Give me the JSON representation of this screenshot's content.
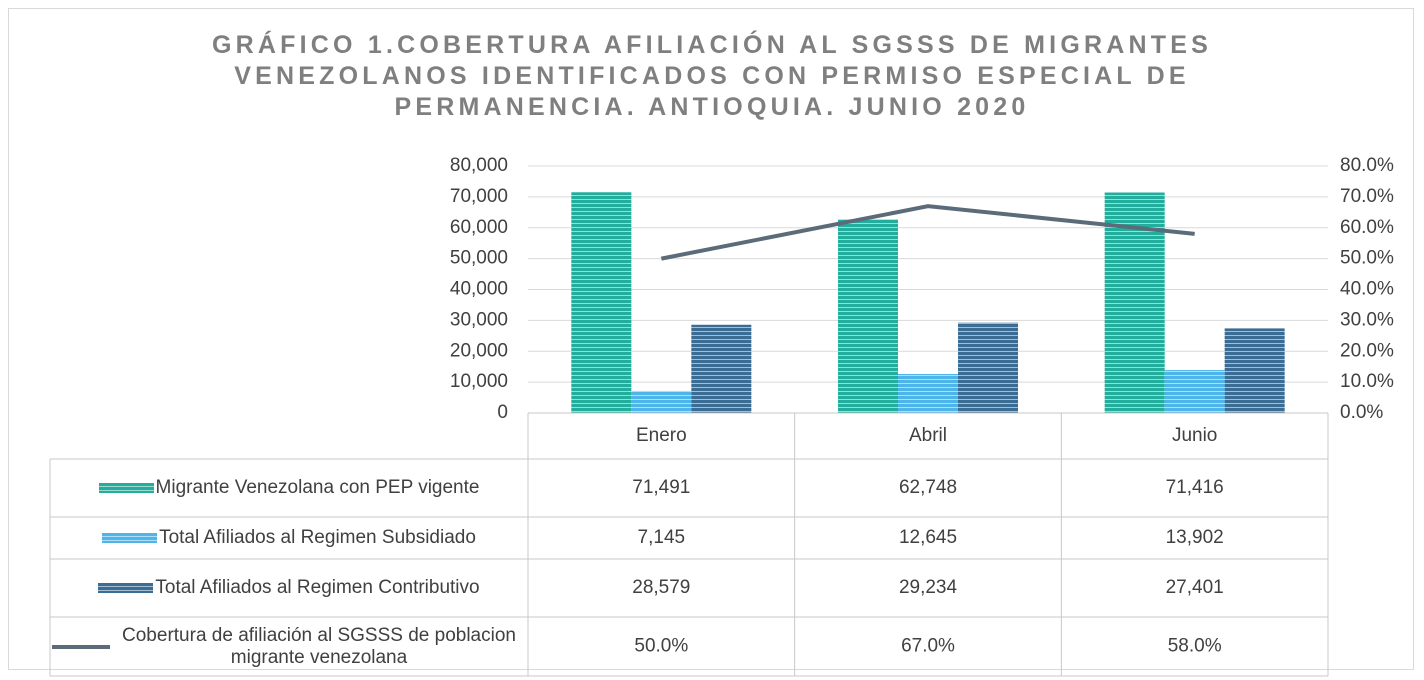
{
  "chart_data": {
    "type": "bar",
    "title": "GRÁFICO 1.COBERTURA AFILIACIÓN AL SGSSS DE MIGRANTES VENEZOLANOS IDENTIFICADOS CON PERMISO ESPECIAL DE PERMANENCIA. ANTIOQUIA. JUNIO 2020",
    "categories": [
      "Enero",
      "Abril",
      "Junio"
    ],
    "series": [
      {
        "name": "Migrante Venezolana  con PEP vigente",
        "color": "#23ad9c",
        "values": [
          71491,
          62748,
          71416
        ],
        "value_labels": [
          "71,491",
          "62,748",
          "71,416"
        ]
      },
      {
        "name": "Total Afiliados al Regimen Subsidiado",
        "color": "#4db5ea",
        "values": [
          7145,
          12645,
          13902
        ],
        "value_labels": [
          "7,145",
          "12,645",
          "13,902"
        ]
      },
      {
        "name": "Total Afiliados al Regimen Contributivo",
        "color": "#3a6c94",
        "values": [
          28579,
          29234,
          27401
        ],
        "value_labels": [
          "28,579",
          "29,234",
          "27,401"
        ]
      },
      {
        "name": "Cobertura de afiliación al SGSSS de poblacion migrante venezolana",
        "color": "#5b6b7a",
        "type": "line",
        "axis": "y2",
        "values": [
          50,
          67,
          58
        ],
        "value_labels": [
          "50.0%",
          "67.0%",
          "58.0%"
        ]
      }
    ],
    "ylim": [
      0,
      80000
    ],
    "yticks": [
      0,
      {
        "value": 10000,
        "label": "10,000"
      },
      {
        "value": 20000,
        "label": "20,000"
      },
      {
        "value": 30000,
        "label": "30,000"
      },
      {
        "value": 40000,
        "label": "40,000"
      },
      {
        "value": 50000,
        "label": "50,000"
      },
      {
        "value": 60000,
        "label": "60,000"
      },
      {
        "value": 70000,
        "label": "70,000"
      },
      {
        "value": 80000,
        "label": "80,000"
      }
    ],
    "y2lim": [
      0,
      80
    ],
    "y2ticks": [
      {
        "value": 0,
        "label": "0.0%"
      },
      {
        "value": 10,
        "label": "10.0%"
      },
      {
        "value": 20,
        "label": "20.0%"
      },
      {
        "value": 30,
        "label": "30.0%"
      },
      {
        "value": 40,
        "label": "40.0%"
      },
      {
        "value": 50,
        "label": "50.0%"
      },
      {
        "value": 60,
        "label": "60.0%"
      },
      {
        "value": 70,
        "label": "70.0%"
      },
      {
        "value": 80,
        "label": "80.0%"
      }
    ],
    "grid": true
  }
}
